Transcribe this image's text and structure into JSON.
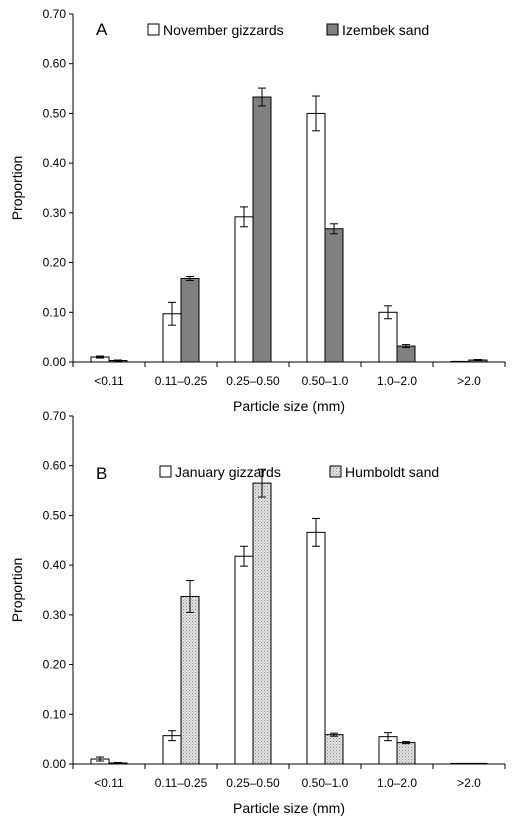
{
  "chart_data": [
    {
      "panel": "A",
      "type": "bar",
      "categories": [
        "<0.11",
        "0.11–0.25",
        "0.25–0.50",
        "0.50–1.0",
        "1.0–2.0",
        ">2.0"
      ],
      "series": [
        {
          "name": "November gizzards",
          "color": "#ffffff",
          "values": [
            0.01,
            0.097,
            0.292,
            0.5,
            0.1,
            0.0
          ],
          "error": [
            0.002,
            0.023,
            0.02,
            0.035,
            0.013,
            0.0
          ]
        },
        {
          "name": "Izembek sand",
          "color": "#808080",
          "values": [
            0.003,
            0.168,
            0.533,
            0.268,
            0.032,
            0.004
          ],
          "error": [
            0.001,
            0.004,
            0.018,
            0.01,
            0.003,
            0.001
          ]
        }
      ],
      "xlabel": "Particle size (mm)",
      "ylabel": "Proportion",
      "ylim": [
        0,
        0.7
      ],
      "yticks": [
        "0.00",
        "0.10",
        "0.20",
        "0.30",
        "0.40",
        "0.50",
        "0.60",
        "0.70"
      ],
      "grid": false,
      "legend": "top"
    },
    {
      "panel": "B",
      "type": "bar",
      "categories": [
        "<0.11",
        "0.11–0.25",
        "0.25–0.50",
        "0.50–1.0",
        "1.0–2.0",
        ">2.0"
      ],
      "series": [
        {
          "name": "January gizzards",
          "color": "#ffffff",
          "values": [
            0.01,
            0.057,
            0.418,
            0.466,
            0.055,
            0.0
          ],
          "error": [
            0.004,
            0.01,
            0.02,
            0.028,
            0.008,
            0.0
          ]
        },
        {
          "name": "Humboldt sand",
          "color": "#d0d0d0",
          "values": [
            0.002,
            0.337,
            0.565,
            0.059,
            0.043,
            0.001
          ],
          "error": [
            0.001,
            0.032,
            0.028,
            0.003,
            0.002,
            0.0
          ]
        }
      ],
      "xlabel": "Particle size (mm)",
      "ylabel": "Proportion",
      "ylim": [
        0,
        0.7
      ],
      "yticks": [
        "0.00",
        "0.10",
        "0.20",
        "0.30",
        "0.40",
        "0.50",
        "0.60",
        "0.70"
      ],
      "grid": false,
      "legend": "top"
    }
  ]
}
